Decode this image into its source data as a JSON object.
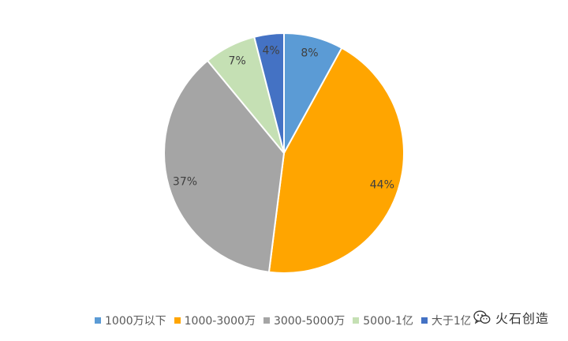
{
  "chart_data": {
    "type": "pie",
    "title": "",
    "start_angle_deg": 0,
    "direction": "clockwise",
    "slices": [
      {
        "label": "1000万以下",
        "value": 8,
        "value_label": "8%",
        "color": "#5B9BD5"
      },
      {
        "label": "1000-3000万",
        "value": 44,
        "value_label": "44%",
        "color": "#FFA500"
      },
      {
        "label": "3000-5000万",
        "value": 37,
        "value_label": "37%",
        "color": "#A5A5A5"
      },
      {
        "label": "5000-1亿",
        "value": 7,
        "value_label": "7%",
        "color": "#C5E0B4"
      },
      {
        "label": "大于1亿",
        "value": 4,
        "value_label": "4%",
        "color": "#4472C4"
      }
    ],
    "legend_position": "bottom"
  },
  "watermark": {
    "text": "火石创造",
    "icon": "wechat-icon"
  }
}
